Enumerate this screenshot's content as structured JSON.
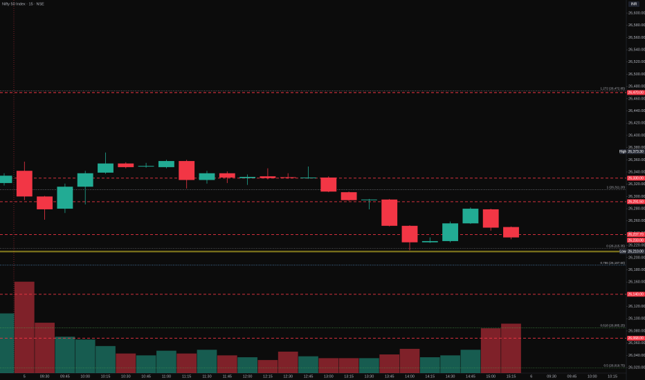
{
  "header": {
    "title": "Nifty 50 Index · 15 · NSE",
    "currency": "INR"
  },
  "chart_data": {
    "type": "candlestick",
    "categories": [
      null,
      "5",
      "09:30",
      "09:45",
      "10:00",
      "10:15",
      "10:30",
      "10:45",
      "11:00",
      "11:15",
      "11:30",
      "11:45",
      "12:00",
      "12:15",
      "12:30",
      "12:45",
      "13:00",
      "13:15",
      "13:30",
      "13:45",
      "14:00",
      "14:15",
      "14:30",
      "14:45",
      "15:00",
      "15:15"
    ],
    "future_categories": [
      "6",
      "09:30",
      "09:45",
      "10:00",
      "10:15"
    ],
    "open": [
      26322,
      26342,
      26300,
      26280,
      26316,
      26339,
      26354,
      26349,
      26348,
      26358,
      26327,
      26338,
      26330,
      26333,
      26331.5,
      26330,
      26331,
      26307,
      26294,
      26295,
      26252,
      26225,
      26227,
      26256,
      26279,
      26250
    ],
    "high": [
      26338,
      26357,
      26301,
      26321,
      26342,
      26372,
      26356,
      26355,
      26360,
      26360,
      26342,
      26341,
      26336,
      26346,
      26338,
      26349,
      26333,
      26308,
      26296,
      26296,
      26253,
      26233,
      26259,
      26282,
      26280,
      26251
    ],
    "low": [
      26318,
      26294,
      26262,
      26273,
      26287,
      26337,
      26346,
      26347,
      26346,
      26313,
      26321,
      26322,
      26319,
      26328,
      26329,
      26329,
      26307,
      26293,
      26279,
      26251,
      26212,
      26224,
      26225,
      26255,
      26244,
      26230
    ],
    "close": [
      26334,
      26300,
      26279,
      26316,
      26338,
      26354,
      26348,
      26350,
      26358,
      26327,
      26338,
      26331,
      26332,
      26330,
      26330.5,
      26331,
      26308,
      26294,
      26295,
      26252,
      26225,
      26227,
      26256,
      26280,
      26249,
      26233
    ],
    "volume": [
      64,
      98,
      54,
      39,
      36,
      29,
      21,
      19,
      24,
      21,
      25,
      19,
      17,
      14,
      23,
      18,
      16,
      16,
      16,
      20,
      26,
      17,
      19,
      25,
      48,
      53
    ],
    "volume_lim": [
      0,
      400
    ],
    "up_color": "#22ab94",
    "down_color": "#f23645",
    "ylim": [
      26011,
      26621.5
    ],
    "yticks": [
      {
        "value": 26020,
        "label": "26,020.00"
      },
      {
        "value": 26040,
        "label": "26,040.00"
      },
      {
        "value": 26060,
        "label": "26,060.00"
      },
      {
        "value": 26080,
        "label": "26,080.00"
      },
      {
        "value": 26100,
        "label": "26,100.00"
      },
      {
        "value": 26120,
        "label": "26,120.00"
      },
      {
        "value": 26140,
        "label": "26,140.00"
      },
      {
        "value": 26160,
        "label": "26,160.00"
      },
      {
        "value": 26180,
        "label": "26,180.00"
      },
      {
        "value": 26200,
        "label": "26,200.00"
      },
      {
        "value": 26220,
        "label": "26,220.00"
      },
      {
        "value": 26240,
        "label": "26,240.00"
      },
      {
        "value": 26260,
        "label": "26,260.00"
      },
      {
        "value": 26280,
        "label": "26,280.00"
      },
      {
        "value": 26300,
        "label": "26,300.00"
      },
      {
        "value": 26320,
        "label": "26,320.00"
      },
      {
        "value": 26340,
        "label": "26,340.00"
      },
      {
        "value": 26360,
        "label": "26,360.00"
      },
      {
        "value": 26380,
        "label": "26,380.00"
      },
      {
        "value": 26400,
        "label": "26,400.00"
      },
      {
        "value": 26420,
        "label": "26,420.00"
      },
      {
        "value": 26440,
        "label": "26,440.00"
      },
      {
        "value": 26460,
        "label": "26,460.00"
      },
      {
        "value": 26480,
        "label": "26,480.00"
      },
      {
        "value": 26500,
        "label": "26,500.00"
      },
      {
        "value": 26520,
        "label": "26,520.00"
      },
      {
        "value": 26540,
        "label": "26,540.00"
      },
      {
        "value": 26560,
        "label": "26,560.00"
      },
      {
        "value": 26580,
        "label": "26,580.00"
      },
      {
        "value": 26600,
        "label": "26,600.00"
      }
    ],
    "fib_levels": [
      {
        "value": 26472.85,
        "label": "1.272 (26,472.85)",
        "color": "#9598a1"
      },
      {
        "value": 26311.2,
        "label": "1 (26,311.20)",
        "color": "#9598a1"
      },
      {
        "value": 26215.35,
        "label": "0 (26,215.35)",
        "color": "#9598a1"
      },
      {
        "value": 26187.6,
        "label": "0.786 (26,187.60)",
        "color": "#64b5f6"
      },
      {
        "value": 26085.25,
        "label": "0.618 (26,085.25)",
        "color": "#4caf50"
      },
      {
        "value": 26019.75,
        "label": "0.5 (26,019.75)",
        "color": "#4caf50"
      }
    ],
    "dashed_levels": [
      {
        "value": 26470,
        "label": "26,470.00"
      },
      {
        "value": 26330,
        "label": "26,330.00"
      },
      {
        "value": 26291.5,
        "label": "26,291.50"
      },
      {
        "value": 26237.7,
        "label": "26,237.70"
      },
      {
        "value": 26140,
        "label": "26,140.00"
      },
      {
        "value": 26068,
        "label": "26,068.00"
      }
    ],
    "dashed_color": "#f23645",
    "extremes": [
      {
        "name": "High",
        "value": 26373.3,
        "label": "26,373.30"
      },
      {
        "name": "Low",
        "value": 26210,
        "label": "26,210.00"
      }
    ],
    "low_line_color": "#c9b827",
    "last_price": {
      "value": 26233,
      "label": "26,233.00"
    }
  }
}
